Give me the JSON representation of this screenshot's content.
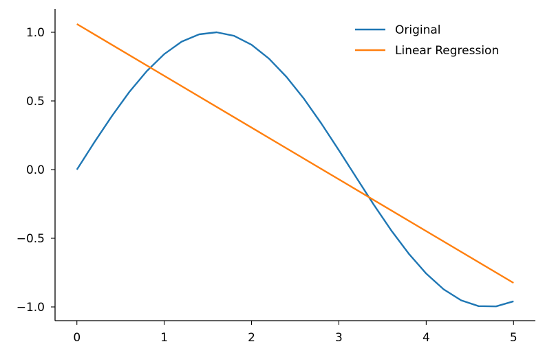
{
  "chart_data": {
    "type": "line",
    "title": "",
    "xlabel": "",
    "ylabel": "",
    "xlim": [
      -0.25,
      5.25
    ],
    "ylim": [
      -1.1,
      1.17
    ],
    "x_ticks": [
      0,
      1,
      2,
      3,
      4,
      5
    ],
    "x_tick_labels": [
      "0",
      "1",
      "2",
      "3",
      "4",
      "5"
    ],
    "y_ticks": [
      1.0,
      0.5,
      0.0,
      -0.5,
      -1.0
    ],
    "y_tick_labels": [
      "1.0",
      "0.5",
      "0.0",
      "−0.5",
      "−1.0"
    ],
    "grid": false,
    "legend_position": "top-right",
    "series": [
      {
        "name": "Original",
        "color": "#1f77b4",
        "x": [
          0,
          0.2,
          0.4,
          0.6,
          0.8,
          1.0,
          1.2,
          1.4,
          1.6,
          1.8,
          2.0,
          2.2,
          2.4,
          2.6,
          2.8,
          3.0,
          3.2,
          3.4,
          3.6,
          3.8,
          4.0,
          4.2,
          4.4,
          4.6,
          4.8,
          5.0
        ],
        "values": [
          0.0,
          0.199,
          0.389,
          0.565,
          0.717,
          0.841,
          0.932,
          0.985,
          1.0,
          0.974,
          0.909,
          0.808,
          0.675,
          0.516,
          0.335,
          0.141,
          -0.058,
          -0.256,
          -0.443,
          -0.612,
          -0.757,
          -0.872,
          -0.952,
          -0.994,
          -0.996,
          -0.959
        ]
      },
      {
        "name": "Linear Regression",
        "color": "#ff7f0e",
        "x": [
          0,
          5
        ],
        "values": [
          1.06,
          -0.825
        ]
      }
    ]
  }
}
